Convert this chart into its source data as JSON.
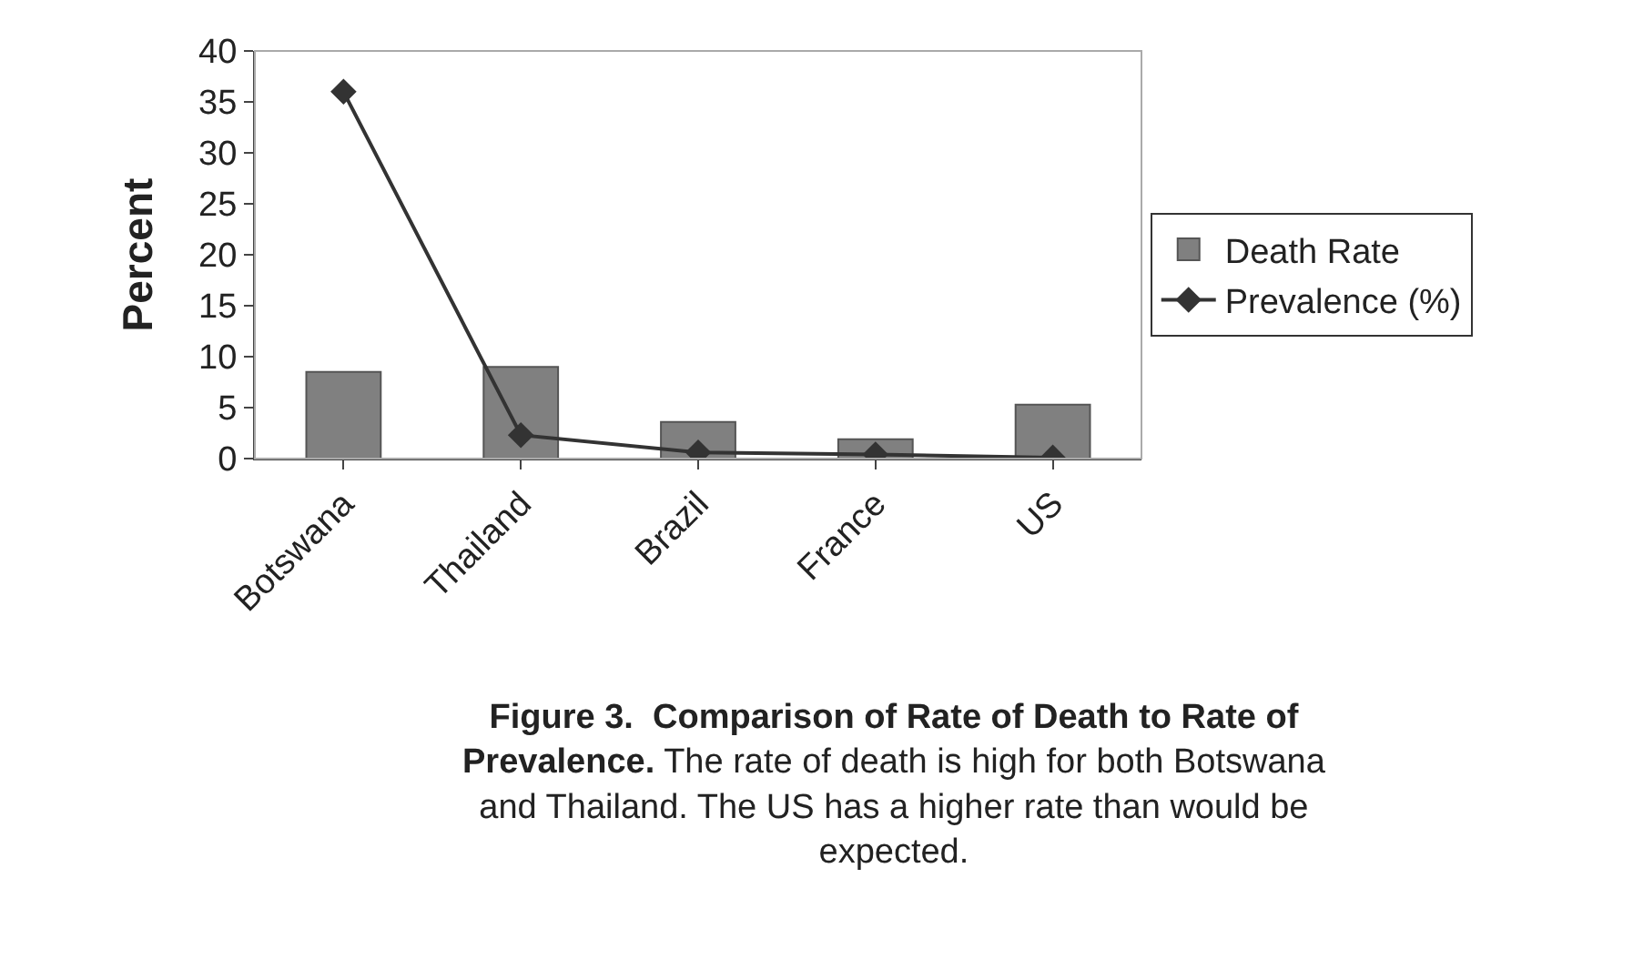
{
  "chart_data": {
    "type": "bar",
    "ylabel": "Percent",
    "categories": [
      "Botswana",
      "Thailand",
      "Brazil",
      "France",
      "US"
    ],
    "series": [
      {
        "name": "Death Rate",
        "color": "#808080",
        "values": [
          8.5,
          9.0,
          3.6,
          1.9,
          5.3
        ]
      },
      {
        "name": "Prevalence (%)",
        "type": "line",
        "color": "#333333",
        "values": [
          36,
          2.3,
          0.6,
          0.4,
          0.1
        ]
      }
    ],
    "ylim": [
      0,
      40
    ],
    "yticks": [
      0,
      5,
      10,
      15,
      20,
      25,
      30,
      35,
      40
    ],
    "grid": false,
    "legend": "right",
    "marker": "diamond",
    "line_style": "solid",
    "annotations": [
      "Figure 3.  Comparison of Rate of Death to Rate of Prevalence.",
      "The rate of death is high for both Botswana and Thailand. The US has a higher rate than would be expected."
    ]
  }
}
